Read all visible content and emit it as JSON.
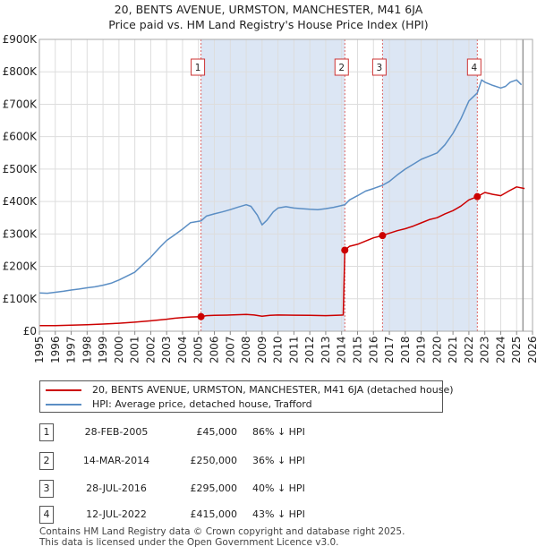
{
  "title": {
    "line1": "20, BENTS AVENUE, URMSTON, MANCHESTER, M41 6JA",
    "line2": "Price paid vs. HM Land Registry's House Price Index (HPI)"
  },
  "colors": {
    "price_line": "#cc0000",
    "hpi_line": "#5b8ec4",
    "shade": "#dce6f4",
    "vline": "#dd6666",
    "grid": "#dddddd"
  },
  "chart_data": {
    "type": "line",
    "title": "Price paid vs. HM Land Registry's House Price Index (HPI)",
    "xlabel": "",
    "ylabel": "",
    "xlim": [
      1995,
      2026
    ],
    "ylim": [
      0,
      900000
    ],
    "y_ticks": [
      {
        "value": 0,
        "label": "£0"
      },
      {
        "value": 100000,
        "label": "£100K"
      },
      {
        "value": 200000,
        "label": "£200K"
      },
      {
        "value": 300000,
        "label": "£300K"
      },
      {
        "value": 400000,
        "label": "£400K"
      },
      {
        "value": 500000,
        "label": "£500K"
      },
      {
        "value": 600000,
        "label": "£600K"
      },
      {
        "value": 700000,
        "label": "£700K"
      },
      {
        "value": 800000,
        "label": "£800K"
      },
      {
        "value": 900000,
        "label": "£900K"
      }
    ],
    "x_ticks": [
      "1995",
      "1996",
      "1997",
      "1998",
      "1999",
      "2000",
      "2001",
      "2002",
      "2003",
      "2004",
      "2005",
      "2006",
      "2007",
      "2008",
      "2009",
      "2010",
      "2011",
      "2012",
      "2013",
      "2014",
      "2015",
      "2016",
      "2017",
      "2018",
      "2019",
      "2020",
      "2021",
      "2022",
      "2023",
      "2024",
      "2025",
      "2026"
    ],
    "shaded_ranges": [
      [
        2005.16,
        2014.2
      ],
      [
        2016.57,
        2022.53
      ]
    ],
    "forecast_start": 2025.4,
    "series": [
      {
        "name": "20, BENTS AVENUE, URMSTON, MANCHESTER, M41 6JA (detached house)",
        "x": [
          1995.0,
          1996.0,
          1997.0,
          1998.0,
          1999.0,
          2000.0,
          2001.0,
          2002.0,
          2003.0,
          2003.5,
          2004.0,
          2004.5,
          2005.16,
          2005.5,
          2006.0,
          2007.0,
          2008.0,
          2008.5,
          2009.0,
          2009.5,
          2010.0,
          2011.0,
          2012.0,
          2013.0,
          2014.1,
          2014.2,
          2014.5,
          2015.0,
          2015.5,
          2016.0,
          2016.57,
          2017.0,
          2017.5,
          2018.0,
          2018.5,
          2019.0,
          2019.5,
          2020.0,
          2020.5,
          2021.0,
          2021.5,
          2022.0,
          2022.53,
          2023.0,
          2023.5,
          2024.0,
          2024.5,
          2025.0,
          2025.5
        ],
        "y": [
          17000,
          17500,
          18500,
          20000,
          22000,
          24500,
          28000,
          32000,
          37000,
          40000,
          42000,
          44000,
          45000,
          48000,
          49000,
          50000,
          52000,
          50000,
          46000,
          49000,
          50000,
          49500,
          49000,
          48000,
          50000,
          250000,
          262000,
          268000,
          278000,
          288000,
          295000,
          302000,
          310000,
          316000,
          324000,
          334000,
          344000,
          350000,
          362000,
          372000,
          386000,
          405000,
          415000,
          428000,
          422000,
          418000,
          432000,
          445000,
          440000
        ]
      },
      {
        "name": "HPI: Average price, detached house, Trafford",
        "x": [
          1995.0,
          1995.5,
          1996.0,
          1996.5,
          1997.0,
          1997.5,
          1998.0,
          1998.5,
          1999.0,
          1999.5,
          2000.0,
          2000.5,
          2001.0,
          2001.5,
          2002.0,
          2002.5,
          2003.0,
          2003.5,
          2004.0,
          2004.5,
          2005.16,
          2005.5,
          2006.0,
          2006.5,
          2007.0,
          2007.5,
          2008.0,
          2008.3,
          2008.7,
          2009.0,
          2009.3,
          2009.7,
          2010.0,
          2010.5,
          2011.0,
          2011.5,
          2012.0,
          2012.5,
          2013.0,
          2013.5,
          2014.2,
          2014.5,
          2015.0,
          2015.5,
          2016.0,
          2016.57,
          2017.0,
          2017.5,
          2018.0,
          2018.5,
          2019.0,
          2019.5,
          2020.0,
          2020.5,
          2021.0,
          2021.5,
          2022.0,
          2022.53,
          2022.8,
          2023.0,
          2023.5,
          2024.0,
          2024.3,
          2024.6,
          2025.0,
          2025.3
        ],
        "y": [
          118000,
          117000,
          120000,
          123000,
          127000,
          130000,
          134000,
          137000,
          142000,
          148000,
          158000,
          170000,
          182000,
          205000,
          228000,
          255000,
          280000,
          297000,
          315000,
          335000,
          340000,
          355000,
          362000,
          368000,
          375000,
          383000,
          390000,
          385000,
          358000,
          328000,
          342000,
          368000,
          380000,
          384000,
          380000,
          378000,
          376000,
          375000,
          378000,
          382000,
          390000,
          405000,
          418000,
          432000,
          440000,
          450000,
          462000,
          482000,
          500000,
          515000,
          530000,
          540000,
          550000,
          575000,
          610000,
          655000,
          710000,
          735000,
          775000,
          768000,
          758000,
          750000,
          755000,
          768000,
          775000,
          760000
        ]
      }
    ],
    "markers": [
      {
        "label": "1",
        "x": 2005.16,
        "y": 45000
      },
      {
        "label": "2",
        "x": 2014.2,
        "y": 250000
      },
      {
        "label": "3",
        "x": 2016.57,
        "y": 295000
      },
      {
        "label": "4",
        "x": 2022.53,
        "y": 415000
      }
    ]
  },
  "legend": [
    {
      "label": "20, BENTS AVENUE, URMSTON, MANCHESTER, M41 6JA (detached house)"
    },
    {
      "label": "HPI: Average price, detached house, Trafford"
    }
  ],
  "transactions": [
    {
      "num": "1",
      "date": "28-FEB-2005",
      "price": "£45,000",
      "hpi": "86% ↓ HPI"
    },
    {
      "num": "2",
      "date": "14-MAR-2014",
      "price": "£250,000",
      "hpi": "36% ↓ HPI"
    },
    {
      "num": "3",
      "date": "28-JUL-2016",
      "price": "£295,000",
      "hpi": "40% ↓ HPI"
    },
    {
      "num": "4",
      "date": "12-JUL-2022",
      "price": "£415,000",
      "hpi": "43% ↓ HPI"
    }
  ],
  "footer": {
    "line1": "Contains HM Land Registry data © Crown copyright and database right 2025.",
    "line2": "This data is licensed under the Open Government Licence v3.0."
  }
}
